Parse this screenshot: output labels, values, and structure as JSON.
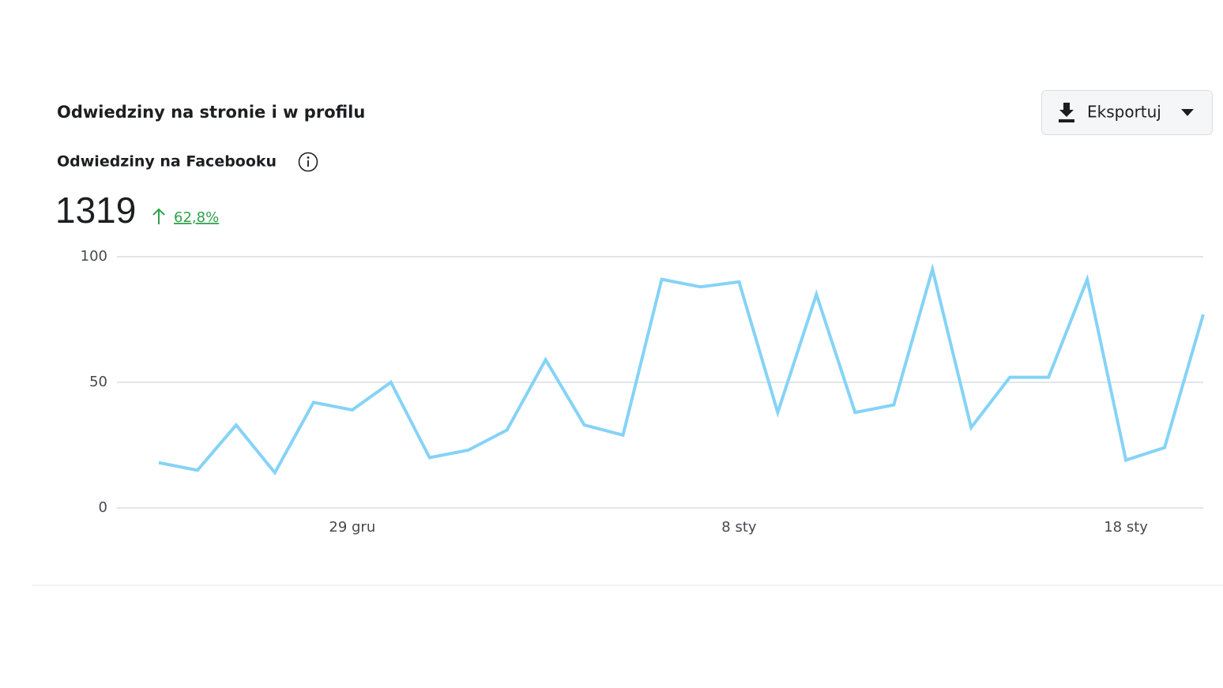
{
  "header": {
    "title": "Odwiedziny na stronie i w profilu",
    "export_button": "Eksportuj"
  },
  "metric": {
    "name": "Odwiedziny na Facebooku",
    "total": 1319,
    "change": "62,8%"
  },
  "chart_data": {
    "type": "line",
    "categories": [
      null,
      null,
      null,
      null,
      null,
      "29 gru",
      null,
      null,
      null,
      null,
      null,
      null,
      null,
      null,
      null,
      "8 sty",
      null,
      null,
      null,
      null,
      null,
      null,
      null,
      null,
      null,
      "18 sty",
      null,
      null
    ],
    "series": [
      {
        "color": "#85d3f7",
        "values": [
          18,
          15,
          33,
          14,
          42,
          39,
          50,
          20,
          23,
          31,
          59,
          33,
          29,
          91,
          88,
          90,
          38,
          85,
          38,
          41,
          95,
          32,
          52,
          52,
          91,
          19,
          24,
          77
        ]
      }
    ],
    "ylim": [
      0,
      100
    ],
    "yticks": [
      0,
      50,
      100
    ],
    "grid": true
  }
}
